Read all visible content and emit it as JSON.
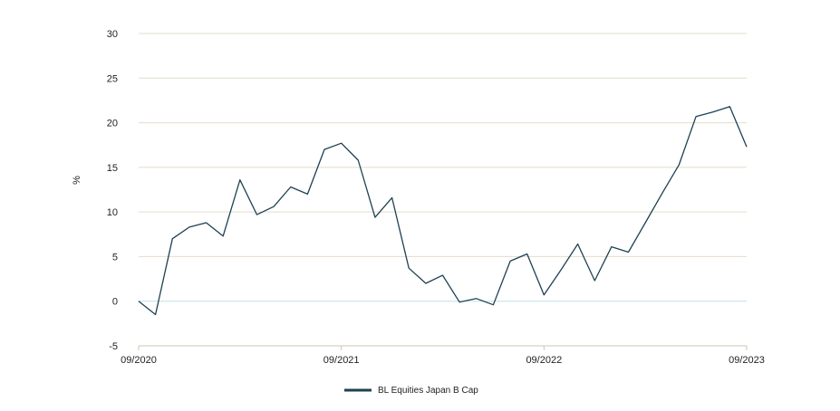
{
  "chart_data": {
    "type": "line",
    "ylabel": "%",
    "xlabel": "",
    "ylim": [
      -5,
      30
    ],
    "yticks": [
      -5,
      0,
      5,
      10,
      15,
      20,
      25,
      30
    ],
    "xlim": [
      "2020-09",
      "2023-09"
    ],
    "xticks": [
      "09/2020",
      "09/2021",
      "09/2022",
      "09/2023"
    ],
    "grid": true,
    "legend_placement": "bottom-center",
    "colors": {
      "series": "#1e4152",
      "grid": "#e4dccb",
      "zero_line": "#bfe0ea",
      "axis": "#cfc6b4"
    },
    "series": [
      {
        "name": "BL Equities Japan B Cap",
        "points": [
          [
            "2020-09",
            0.0
          ],
          [
            "2020-10",
            -1.5
          ],
          [
            "2020-11",
            7.0
          ],
          [
            "2020-12",
            8.3
          ],
          [
            "2021-01",
            8.8
          ],
          [
            "2021-02",
            7.3
          ],
          [
            "2021-03",
            13.6
          ],
          [
            "2021-04",
            9.7
          ],
          [
            "2021-05",
            10.6
          ],
          [
            "2021-06",
            12.8
          ],
          [
            "2021-07",
            12.0
          ],
          [
            "2021-08",
            17.0
          ],
          [
            "2021-09",
            17.7
          ],
          [
            "2021-10",
            15.8
          ],
          [
            "2021-11",
            9.4
          ],
          [
            "2021-12",
            11.6
          ],
          [
            "2022-01",
            3.7
          ],
          [
            "2022-02",
            2.0
          ],
          [
            "2022-03",
            2.9
          ],
          [
            "2022-04",
            -0.1
          ],
          [
            "2022-05",
            0.3
          ],
          [
            "2022-06",
            -0.4
          ],
          [
            "2022-07",
            4.5
          ],
          [
            "2022-08",
            5.3
          ],
          [
            "2022-09",
            0.7
          ],
          [
            "2022-10",
            3.5
          ],
          [
            "2022-11",
            6.4
          ],
          [
            "2022-12",
            2.3
          ],
          [
            "2023-01",
            6.1
          ],
          [
            "2023-02",
            5.5
          ],
          [
            "2023-03",
            8.8
          ],
          [
            "2023-04",
            12.1
          ],
          [
            "2023-05",
            15.3
          ],
          [
            "2023-06",
            20.7
          ],
          [
            "2023-07",
            21.2
          ],
          [
            "2023-08",
            21.8
          ],
          [
            "2023-09",
            17.3
          ]
        ]
      }
    ]
  }
}
